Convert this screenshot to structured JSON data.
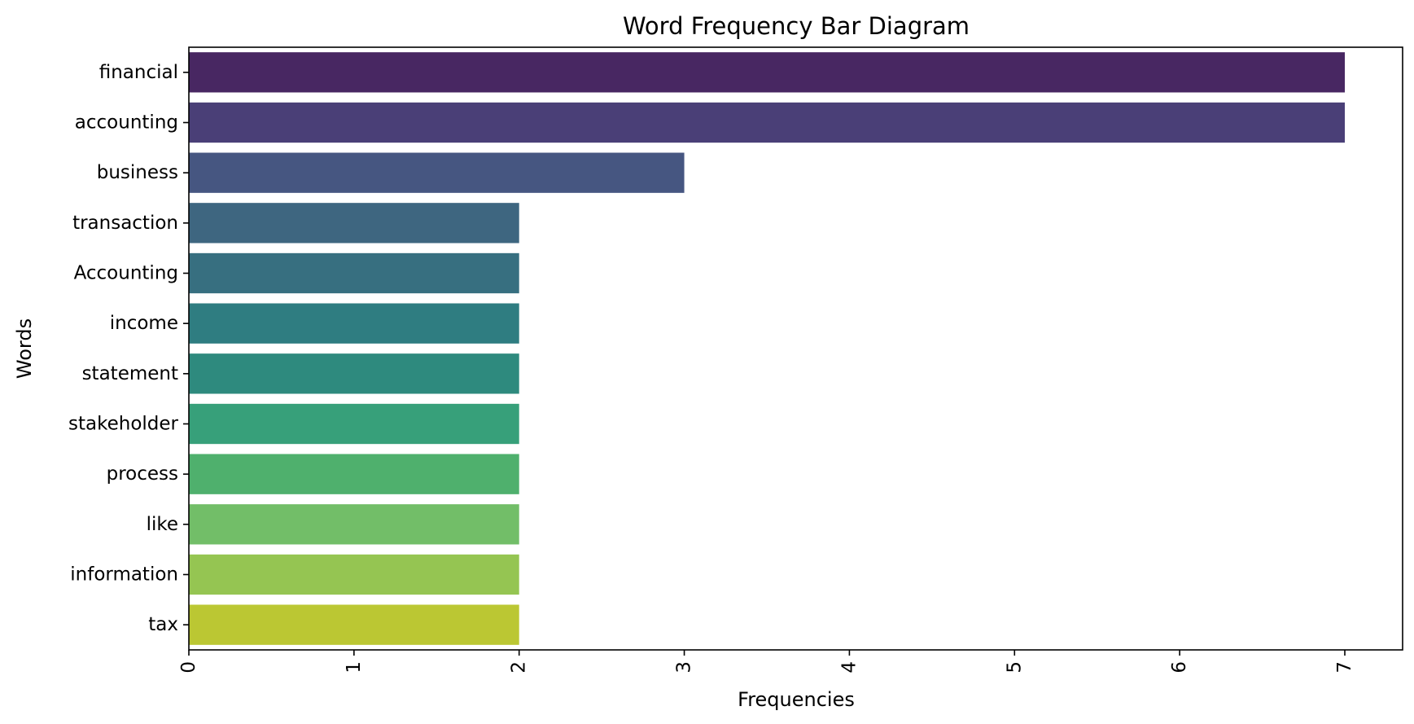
{
  "chart_data": {
    "type": "bar",
    "orientation": "horizontal",
    "title": "Word Frequency Bar Diagram",
    "xlabel": "Frequencies",
    "ylabel": "Words",
    "categories": [
      "financial",
      "accounting",
      "business",
      "transaction",
      "Accounting",
      "income",
      "statement",
      "stakeholder",
      "process",
      "like",
      "information",
      "tax"
    ],
    "values": [
      7,
      7,
      3,
      2,
      2,
      2,
      2,
      2,
      2,
      2,
      2,
      2
    ],
    "colors": [
      "#482762",
      "#4a3f77",
      "#465681",
      "#3e6680",
      "#376f80",
      "#2f7d81",
      "#2e8a7e",
      "#37a07a",
      "#4fb06d",
      "#72be68",
      "#95c552",
      "#bbc733"
    ],
    "xticks": [
      0,
      1,
      2,
      3,
      4,
      5,
      6,
      7
    ],
    "xlim": [
      0,
      7.35
    ],
    "grid": false,
    "legend": "none"
  }
}
